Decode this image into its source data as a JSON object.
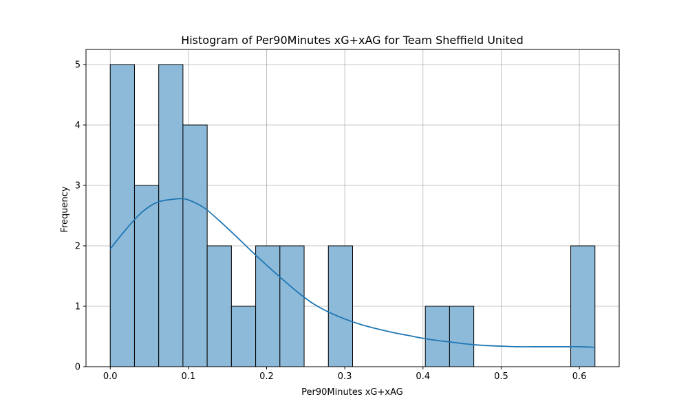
{
  "chart_data": {
    "type": "bar",
    "title": "Histogram of Per90Minutes xG+xAG for Team Sheffield United",
    "xlabel": "Per90Minutes xG+xAG",
    "ylabel": "Frequency",
    "xlim": [
      -0.031,
      0.651
    ],
    "ylim": [
      0,
      5.25
    ],
    "x_ticks": [
      0.0,
      0.1,
      0.2,
      0.3,
      0.4,
      0.5,
      0.6
    ],
    "x_tick_labels": [
      "0.0",
      "0.1",
      "0.2",
      "0.3",
      "0.4",
      "0.5",
      "0.6"
    ],
    "y_ticks": [
      0,
      1,
      2,
      3,
      4,
      5
    ],
    "y_tick_labels": [
      "0",
      "1",
      "2",
      "3",
      "4",
      "5"
    ],
    "grid": true,
    "bins": {
      "edges": [
        0.0,
        0.031,
        0.062,
        0.093,
        0.124,
        0.155,
        0.186,
        0.217,
        0.248,
        0.279,
        0.31,
        0.341,
        0.372,
        0.403,
        0.434,
        0.465,
        0.496,
        0.527,
        0.558,
        0.589,
        0.62
      ],
      "counts": [
        5,
        3,
        5,
        4,
        2,
        1,
        2,
        2,
        0,
        2,
        0,
        0,
        0,
        1,
        1,
        0,
        0,
        0,
        0,
        2
      ]
    },
    "kde": {
      "x": [
        0.0,
        0.02,
        0.04,
        0.06,
        0.08,
        0.09,
        0.1,
        0.12,
        0.14,
        0.16,
        0.18,
        0.2,
        0.22,
        0.24,
        0.26,
        0.28,
        0.3,
        0.32,
        0.34,
        0.36,
        0.38,
        0.4,
        0.42,
        0.44,
        0.46,
        0.48,
        0.5,
        0.52,
        0.54,
        0.56,
        0.58,
        0.6,
        0.62
      ],
      "y": [
        1.95,
        2.27,
        2.55,
        2.72,
        2.77,
        2.78,
        2.76,
        2.63,
        2.41,
        2.17,
        1.92,
        1.68,
        1.45,
        1.23,
        1.04,
        0.9,
        0.79,
        0.7,
        0.63,
        0.57,
        0.52,
        0.47,
        0.43,
        0.4,
        0.37,
        0.35,
        0.34,
        0.33,
        0.33,
        0.33,
        0.33,
        0.33,
        0.32
      ]
    },
    "colors": {
      "bar_fill": "#8ebad9",
      "bar_edge": "#000000",
      "kde_line": "#1f77b4",
      "grid": "#b0b0b0"
    }
  }
}
